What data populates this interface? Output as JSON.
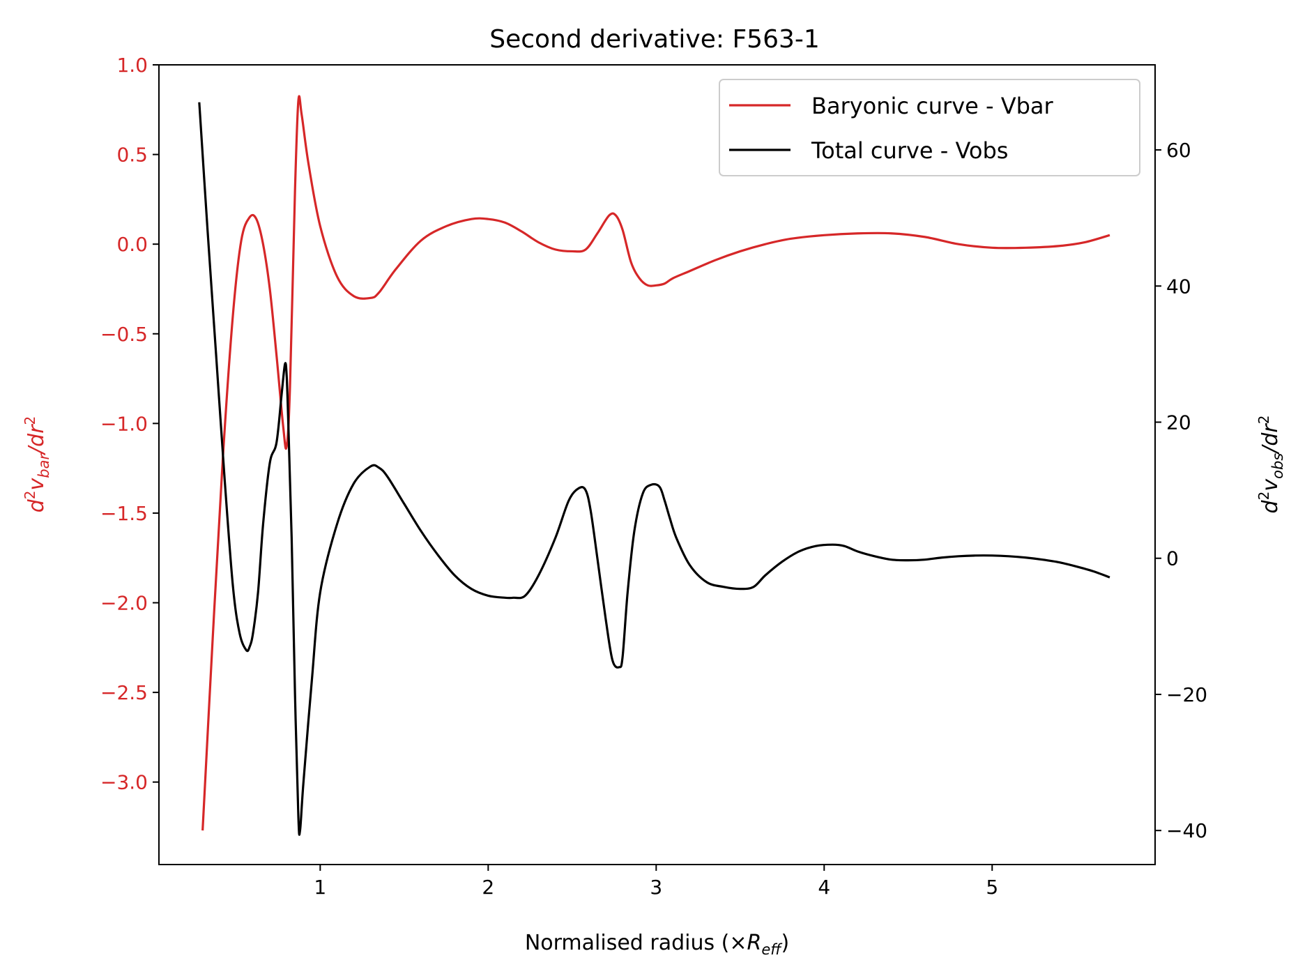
{
  "chart_data": {
    "type": "line",
    "title": "Second derivative: F563-1",
    "xlabel_main": "Normalised radius (×",
    "xlabel_sym": "R",
    "xlabel_sub": "eff",
    "xlabel_close": ")",
    "ylabel_left": {
      "base": "d",
      "sup": "2",
      "v": "v",
      "sub": "bar",
      "rest": "/dr",
      "sup2": "2"
    },
    "ylabel_right": {
      "base": "d",
      "sup": "2",
      "v": "v",
      "sub": "obs",
      "rest": "/dr",
      "sup2": "2"
    },
    "xlim": [
      0.04,
      5.97
    ],
    "ylim_left": [
      -3.46,
      1.0
    ],
    "ylim_right": [
      -45,
      72.5
    ],
    "x_ticks": [
      1,
      2,
      3,
      4,
      5
    ],
    "x_tick_labels": [
      "1",
      "2",
      "3",
      "4",
      "5"
    ],
    "y_left_ticks": [
      1.0,
      0.5,
      0.0,
      -0.5,
      -1.0,
      -1.5,
      -2.0,
      -2.5,
      -3.0
    ],
    "y_left_tick_labels": [
      "1.0",
      "0.5",
      "0.0",
      "−0.5",
      "−1.0",
      "−1.5",
      "−2.0",
      "−2.5",
      "−3.0"
    ],
    "y_right_ticks": [
      60,
      40,
      20,
      0,
      -20,
      -40
    ],
    "y_right_tick_labels": [
      "60",
      "40",
      "20",
      "0",
      "−20",
      "−40"
    ],
    "grid": false,
    "legend_position": "top-right",
    "colors": {
      "vbar": "#d62728",
      "vobs": "#000000",
      "axis": "#000000"
    },
    "series": [
      {
        "name": "Baryonic curve - Vbar",
        "axis": "left",
        "color": "#d62728",
        "x": [
          0.3,
          0.36,
          0.42,
          0.48,
          0.53,
          0.58,
          0.62,
          0.66,
          0.7,
          0.74,
          0.78,
          0.8,
          0.82,
          0.85,
          0.87,
          0.89,
          0.93,
          1.0,
          1.1,
          1.2,
          1.3,
          1.35,
          1.45,
          1.6,
          1.75,
          1.9,
          2.0,
          2.1,
          2.2,
          2.3,
          2.4,
          2.5,
          2.58,
          2.65,
          2.72,
          2.76,
          2.8,
          2.85,
          2.9,
          2.95,
          3.0,
          3.05,
          3.1,
          3.2,
          3.35,
          3.5,
          3.65,
          3.8,
          4.0,
          4.2,
          4.4,
          4.6,
          4.8,
          5.0,
          5.2,
          5.4,
          5.55,
          5.7
        ],
        "y": [
          -3.27,
          -2.2,
          -1.2,
          -0.4,
          0.02,
          0.15,
          0.14,
          0.0,
          -0.25,
          -0.62,
          -1.02,
          -1.13,
          -0.8,
          0.3,
          0.8,
          0.72,
          0.45,
          0.1,
          -0.18,
          -0.29,
          -0.3,
          -0.27,
          -0.14,
          0.02,
          0.1,
          0.14,
          0.14,
          0.12,
          0.07,
          0.01,
          -0.03,
          -0.04,
          -0.03,
          0.06,
          0.16,
          0.16,
          0.08,
          -0.1,
          -0.19,
          -0.23,
          -0.23,
          -0.22,
          -0.19,
          -0.15,
          -0.09,
          -0.04,
          0.0,
          0.03,
          0.05,
          0.06,
          0.06,
          0.04,
          0.0,
          -0.02,
          -0.02,
          -0.01,
          0.01,
          0.05
        ]
      },
      {
        "name": "Total curve - Vobs",
        "axis": "right",
        "color": "#000000",
        "x": [
          0.28,
          0.33,
          0.38,
          0.43,
          0.48,
          0.52,
          0.56,
          0.58,
          0.6,
          0.63,
          0.66,
          0.7,
          0.74,
          0.77,
          0.79,
          0.8,
          0.81,
          0.83,
          0.85,
          0.87,
          0.88,
          0.9,
          0.95,
          1.0,
          1.1,
          1.2,
          1.3,
          1.35,
          1.4,
          1.5,
          1.6,
          1.7,
          1.8,
          1.9,
          2.0,
          2.1,
          2.15,
          2.22,
          2.3,
          2.4,
          2.48,
          2.54,
          2.58,
          2.61,
          2.65,
          2.7,
          2.74,
          2.78,
          2.8,
          2.83,
          2.87,
          2.92,
          2.97,
          3.02,
          3.05,
          3.08,
          3.12,
          3.2,
          3.3,
          3.4,
          3.5,
          3.58,
          3.65,
          3.75,
          3.85,
          3.95,
          4.05,
          4.12,
          4.2,
          4.3,
          4.4,
          4.5,
          4.6,
          4.7,
          4.8,
          4.9,
          5.0,
          5.1,
          5.2,
          5.3,
          5.4,
          5.5,
          5.6,
          5.7
        ],
        "y": [
          67.0,
          48.0,
          30.0,
          12.0,
          -4.0,
          -11.0,
          -13.5,
          -13.0,
          -11.0,
          -5.0,
          5.0,
          14.0,
          17.0,
          24.0,
          28.5,
          27.0,
          20.0,
          3.0,
          -20.0,
          -38.0,
          -40.0,
          -33.0,
          -18.0,
          -5.0,
          5.0,
          11.0,
          13.5,
          13.3,
          12.0,
          8.0,
          4.0,
          0.5,
          -2.5,
          -4.5,
          -5.5,
          -5.8,
          -5.8,
          -5.5,
          -2.5,
          3.0,
          8.5,
          10.3,
          10.0,
          7.0,
          0.0,
          -9.0,
          -15.0,
          -16.0,
          -14.5,
          -5.0,
          4.0,
          9.5,
          10.8,
          10.5,
          8.5,
          6.0,
          3.0,
          -1.0,
          -3.5,
          -4.2,
          -4.5,
          -4.2,
          -2.5,
          -0.5,
          1.0,
          1.8,
          2.0,
          1.8,
          1.0,
          0.3,
          -0.2,
          -0.3,
          -0.2,
          0.1,
          0.3,
          0.4,
          0.4,
          0.3,
          0.1,
          -0.2,
          -0.6,
          -1.2,
          -1.9,
          -2.8
        ]
      }
    ]
  }
}
